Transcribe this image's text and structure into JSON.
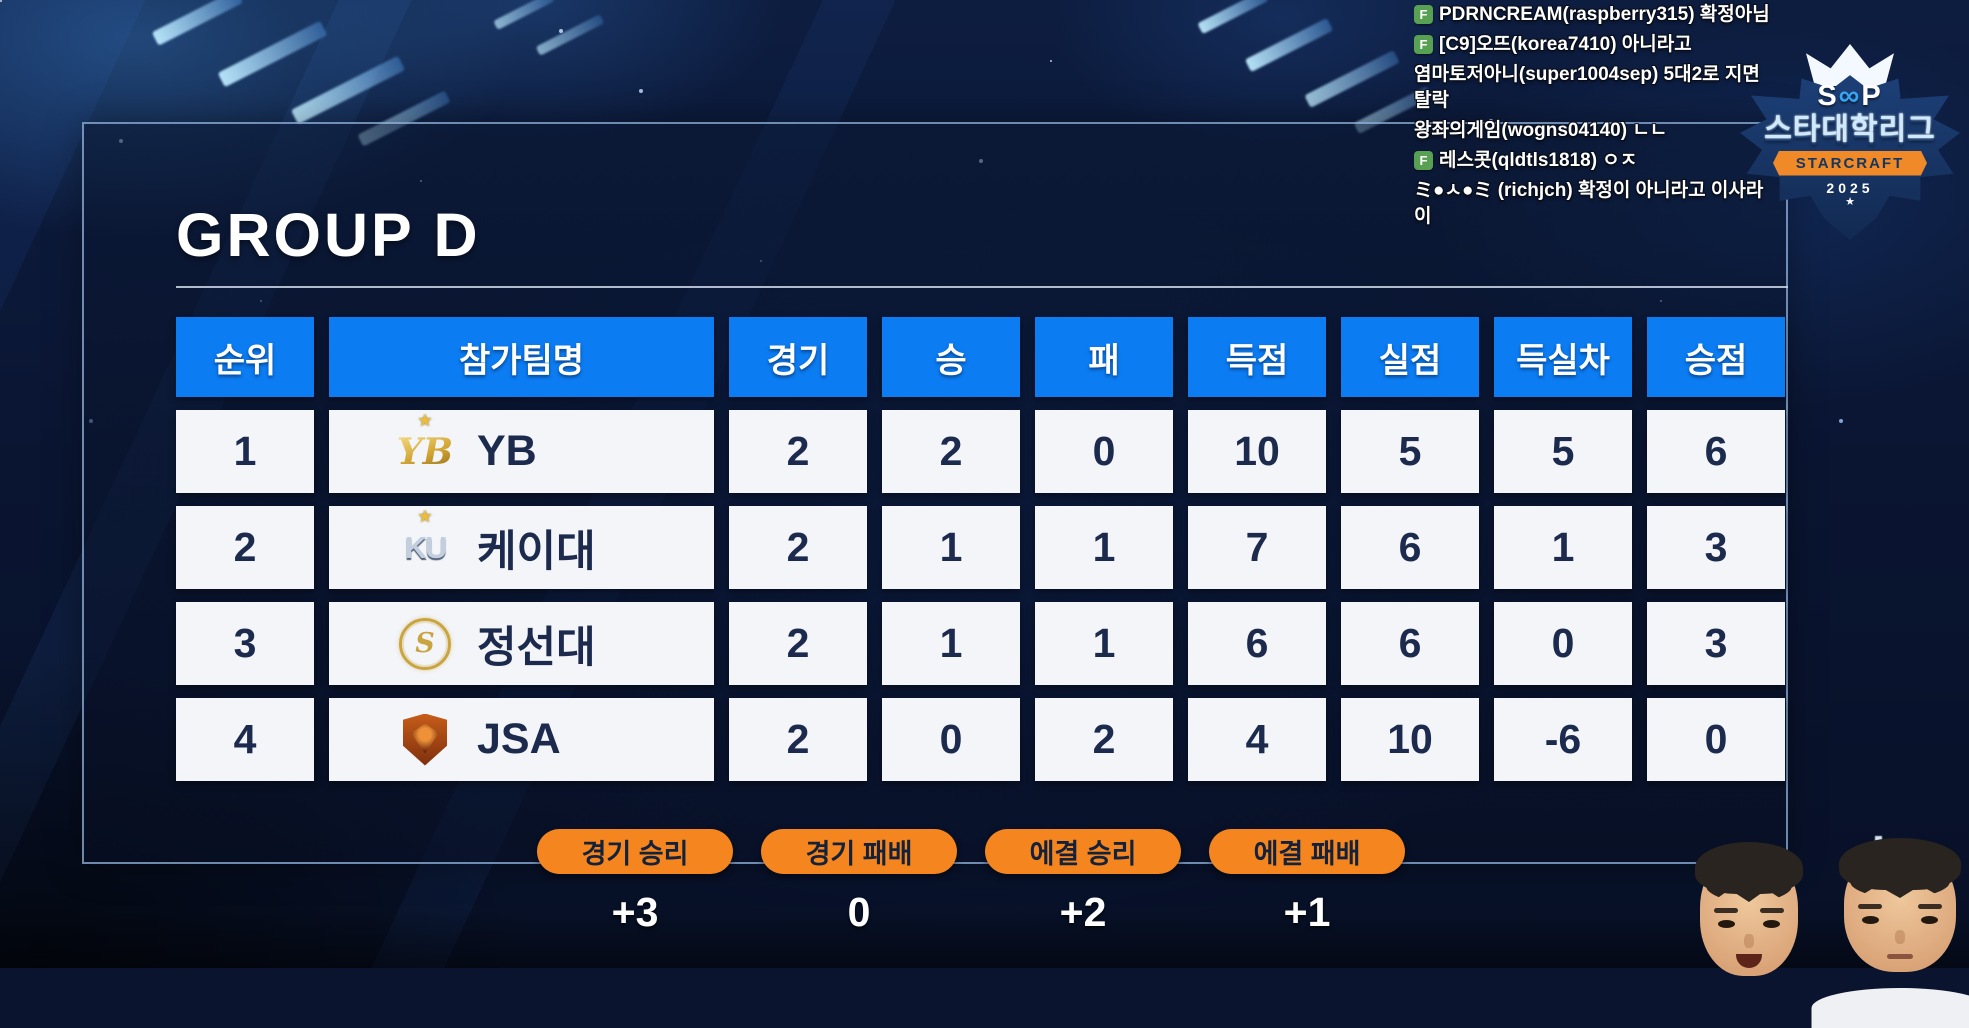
{
  "title": "GROUP D",
  "colors": {
    "accent_blue": "#0c7cf2",
    "accent_orange": "#f5861f",
    "cell_bg": "#f3f5f8",
    "text_navy": "#1c2b4d",
    "chat_badge_green": "#58a152"
  },
  "chat": {
    "messages": [
      {
        "badge": "F",
        "line": "PDRNCREAM(raspberry315) 확정아님"
      },
      {
        "badge": "F",
        "line": "[C9]오뜨(korea7410) 아니라고"
      },
      {
        "badge": "",
        "line": "염마토저아니(super1004sep) 5대2로 지면 탈락"
      },
      {
        "badge": "",
        "line": "왕좌의게임(wogns04140) ㄴㄴ"
      },
      {
        "badge": "F",
        "line": "레스콧(qldtls1818) ㅇㅈ"
      },
      {
        "badge": "",
        "line": "ミ●ㅅ●ミ (richjch) 확정이 아니라고 이사라이"
      }
    ]
  },
  "league_badge": {
    "brand_s": "S",
    "brand_oo": "∞",
    "brand_p": "P",
    "league": "스타대학리그",
    "ribbon": "STARCRAFT",
    "year": "2025",
    "star": "★"
  },
  "table": {
    "headers": [
      "순위",
      "참가팀명",
      "경기",
      "승",
      "패",
      "득점",
      "실점",
      "득실차",
      "승점"
    ],
    "rows": [
      {
        "rank": "1",
        "team": "YB",
        "logo_glyph": "YB",
        "logo_star": "★",
        "cells": [
          "2",
          "2",
          "0",
          "10",
          "5",
          "5",
          "6"
        ]
      },
      {
        "rank": "2",
        "team": "케이대",
        "logo_glyph": "KU",
        "logo_star": "★",
        "cells": [
          "2",
          "1",
          "1",
          "7",
          "6",
          "1",
          "3"
        ]
      },
      {
        "rank": "3",
        "team": "정선대",
        "logo_glyph": "S",
        "logo_star": "",
        "cells": [
          "2",
          "1",
          "1",
          "6",
          "6",
          "0",
          "3"
        ]
      },
      {
        "rank": "4",
        "team": "JSA",
        "logo_glyph": "",
        "logo_star": "",
        "cells": [
          "2",
          "0",
          "2",
          "4",
          "10",
          "-6",
          "0"
        ]
      }
    ]
  },
  "legend": {
    "items": [
      {
        "label": "경기 승리",
        "value": "+3"
      },
      {
        "label": "경기 패배",
        "value": "0"
      },
      {
        "label": "에결 승리",
        "value": "+2"
      },
      {
        "label": "에결 패배",
        "value": "+1"
      }
    ]
  }
}
